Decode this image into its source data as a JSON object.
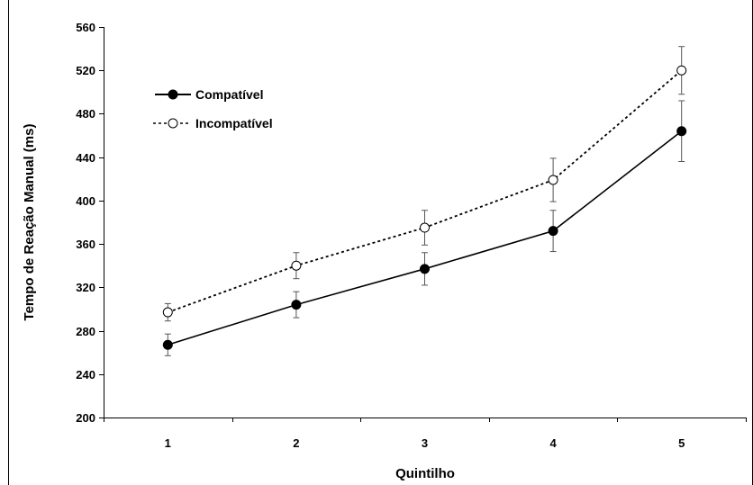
{
  "chart_data": {
    "type": "line",
    "title": "",
    "xlabel": "Quintilho",
    "ylabel": "Tempo de Reação Manual (ms)",
    "categories": [
      "1",
      "2",
      "3",
      "4",
      "5"
    ],
    "ylim": [
      200,
      560
    ],
    "yticks": [
      200,
      240,
      280,
      320,
      360,
      400,
      440,
      480,
      520,
      560
    ],
    "grid": false,
    "legend_position": "top-left",
    "series": [
      {
        "name": "Compatível",
        "style": "solid",
        "marker": "filled-circle",
        "color": "#000000",
        "values": [
          267,
          304,
          337,
          372,
          464
        ],
        "error": [
          10,
          12,
          15,
          19,
          28
        ]
      },
      {
        "name": "Incompatível",
        "style": "dotted",
        "marker": "open-circle",
        "color": "#000000",
        "values": [
          297,
          340,
          375,
          419,
          520
        ],
        "error": [
          8,
          12,
          16,
          20,
          22
        ]
      }
    ]
  }
}
